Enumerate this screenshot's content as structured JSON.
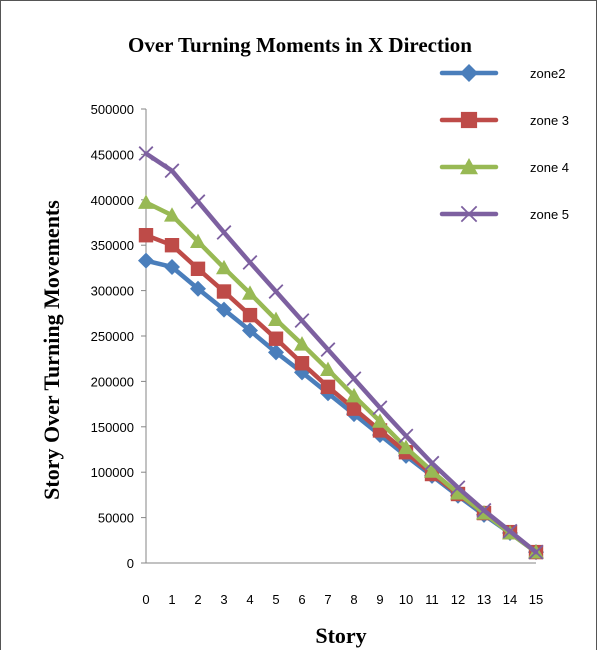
{
  "chart_data": {
    "type": "line",
    "title": "Over Turning  Moments in X Direction",
    "xlabel": "Story",
    "ylabel": "Story  Over Turning Movements",
    "x": [
      0,
      1,
      2,
      3,
      4,
      5,
      6,
      7,
      8,
      9,
      10,
      11,
      12,
      13,
      14,
      15
    ],
    "ylim": [
      0,
      500000
    ],
    "yticks": [
      0,
      50000,
      100000,
      150000,
      200000,
      250000,
      300000,
      350000,
      400000,
      450000,
      500000
    ],
    "grid": false,
    "legend": "right",
    "series": [
      {
        "name": "zone2",
        "color": "#4a7ebb",
        "marker": "diamond",
        "values": [
          333000,
          326000,
          302000,
          279000,
          256000,
          232000,
          210000,
          187000,
          164000,
          141000,
          118000,
          96000,
          74000,
          53000,
          33000,
          12000
        ]
      },
      {
        "name": "zone 3",
        "color": "#be4b48",
        "marker": "square",
        "values": [
          361000,
          350000,
          324000,
          299000,
          273000,
          247000,
          220000,
          194000,
          170000,
          146000,
          122000,
          98000,
          76000,
          55000,
          34000,
          12000
        ]
      },
      {
        "name": "zone 4",
        "color": "#98b954",
        "marker": "triangle",
        "values": [
          397000,
          383000,
          354000,
          325000,
          297000,
          268000,
          241000,
          213000,
          184000,
          156000,
          127000,
          101000,
          77000,
          55000,
          33000,
          12000
        ]
      },
      {
        "name": "zone 5",
        "color": "#7d60a0",
        "marker": "x",
        "values": [
          451000,
          432000,
          398000,
          364000,
          331000,
          299000,
          267000,
          235000,
          203000,
          171000,
          140000,
          110000,
          83000,
          58000,
          35000,
          12000
        ]
      }
    ]
  }
}
